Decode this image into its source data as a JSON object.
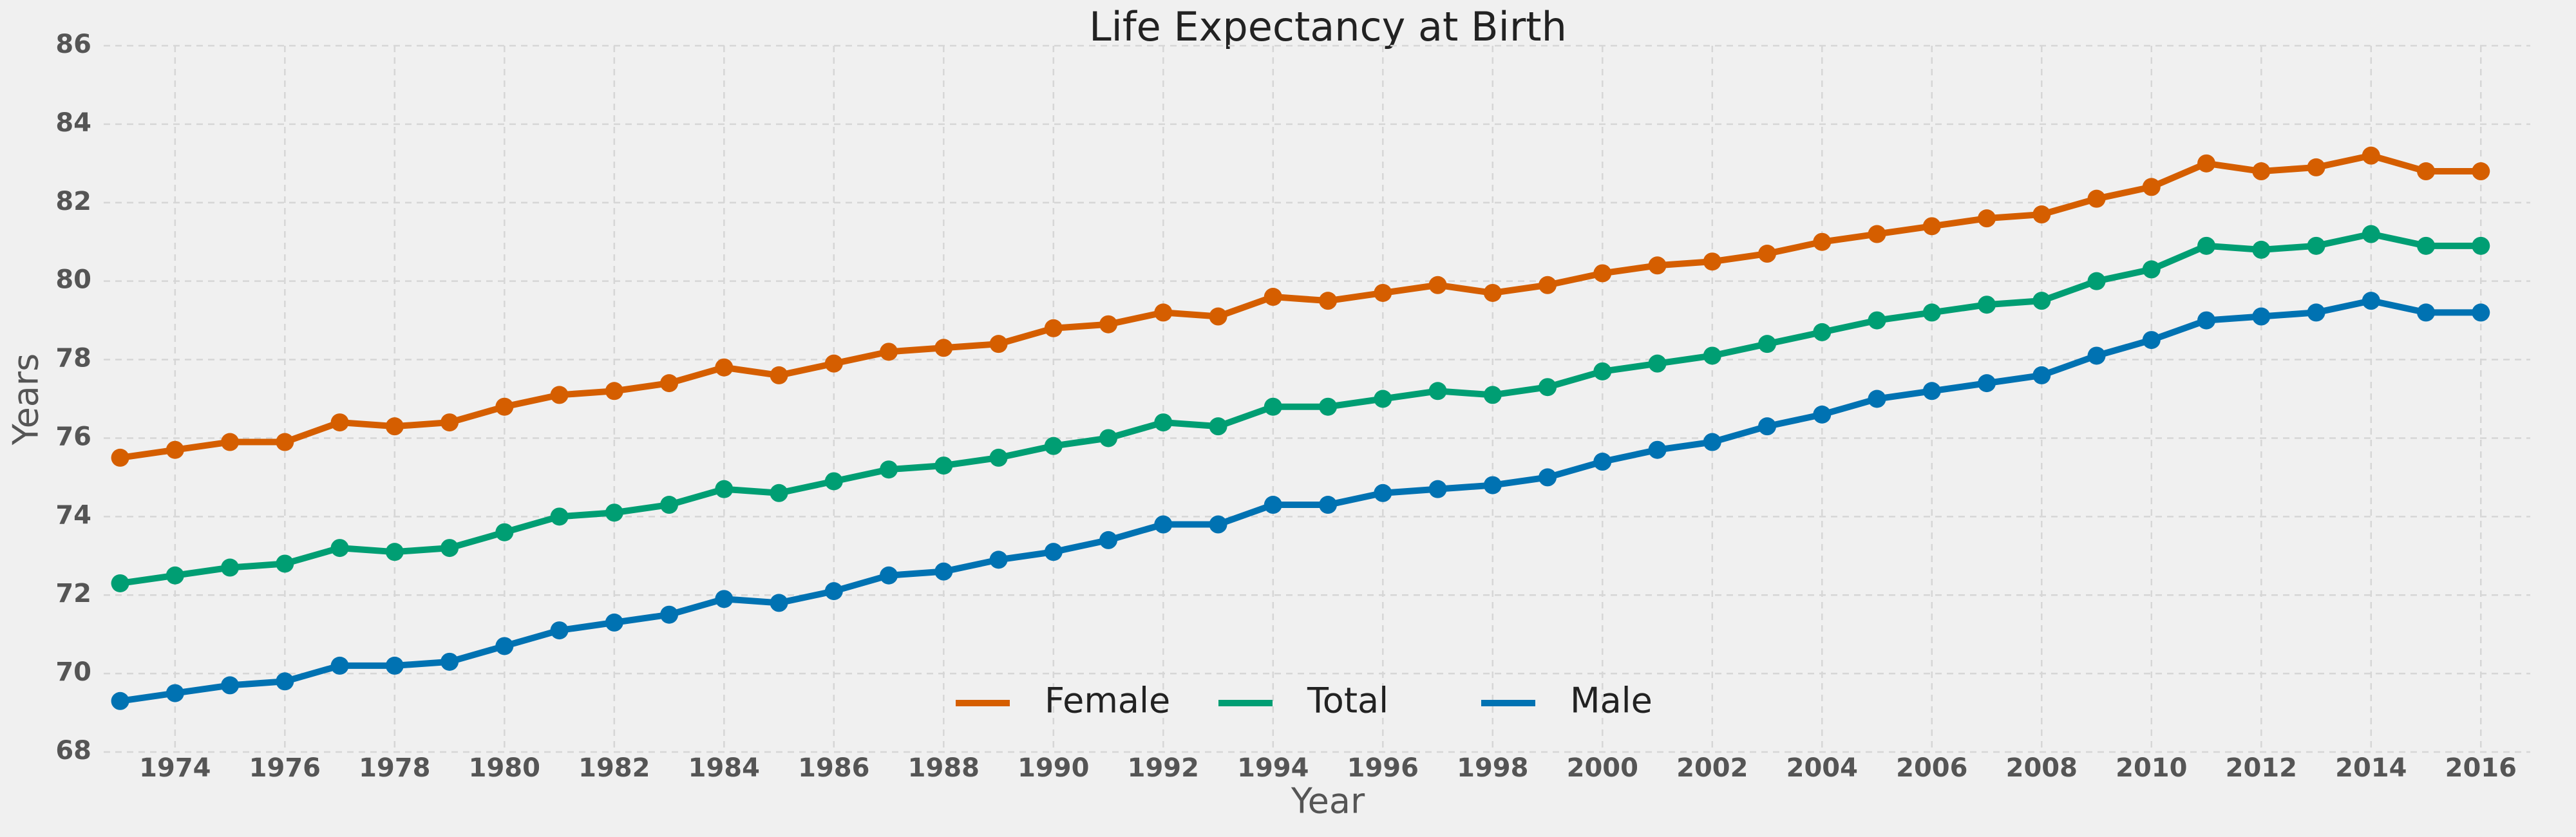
{
  "chart_data": {
    "type": "line",
    "title": "Life Expectancy at Birth",
    "x_label": "Year",
    "y_label": "Years",
    "x": [
      1973,
      1974,
      1975,
      1976,
      1977,
      1978,
      1979,
      1980,
      1981,
      1982,
      1983,
      1984,
      1985,
      1986,
      1987,
      1988,
      1989,
      1990,
      1991,
      1992,
      1993,
      1994,
      1995,
      1996,
      1997,
      1998,
      1999,
      2000,
      2001,
      2002,
      2003,
      2004,
      2005,
      2006,
      2007,
      2008,
      2009,
      2010,
      2011,
      2012,
      2013,
      2014,
      2015,
      2016
    ],
    "series": [
      {
        "name": "Female",
        "color": "#d55e00",
        "values": [
          75.5,
          75.7,
          75.9,
          75.9,
          76.4,
          76.3,
          76.4,
          76.8,
          77.1,
          77.2,
          77.4,
          77.8,
          77.6,
          77.9,
          78.2,
          78.3,
          78.4,
          78.8,
          78.9,
          79.2,
          79.1,
          79.6,
          79.5,
          79.7,
          79.9,
          79.7,
          79.9,
          80.2,
          80.4,
          80.5,
          80.7,
          81.0,
          81.2,
          81.4,
          81.6,
          81.7,
          82.1,
          82.4,
          83.0,
          82.8,
          82.9,
          83.2,
          82.8,
          82.8
        ]
      },
      {
        "name": "Total",
        "color": "#009e73",
        "values": [
          72.3,
          72.5,
          72.7,
          72.8,
          73.2,
          73.1,
          73.2,
          73.6,
          74.0,
          74.1,
          74.3,
          74.7,
          74.6,
          74.9,
          75.2,
          75.3,
          75.5,
          75.8,
          76.0,
          76.4,
          76.3,
          76.8,
          76.8,
          77.0,
          77.2,
          77.1,
          77.3,
          77.7,
          77.9,
          78.1,
          78.4,
          78.7,
          79.0,
          79.2,
          79.4,
          79.5,
          80.0,
          80.3,
          80.9,
          80.8,
          80.9,
          81.2,
          80.9,
          80.9
        ]
      },
      {
        "name": "Male",
        "color": "#0072b2",
        "values": [
          69.3,
          69.5,
          69.7,
          69.8,
          70.2,
          70.2,
          70.3,
          70.7,
          71.1,
          71.3,
          71.5,
          71.9,
          71.8,
          72.1,
          72.5,
          72.6,
          72.9,
          73.1,
          73.4,
          73.8,
          73.8,
          74.3,
          74.3,
          74.6,
          74.7,
          74.8,
          75.0,
          75.4,
          75.7,
          75.9,
          76.3,
          76.6,
          77.0,
          77.2,
          77.4,
          77.6,
          78.1,
          78.5,
          79.0,
          79.1,
          79.2,
          79.5,
          79.2,
          79.2
        ]
      }
    ],
    "xlim": [
      1972.7,
      2016.9
    ],
    "xticks": [
      1974,
      1976,
      1978,
      1980,
      1982,
      1984,
      1986,
      1988,
      1990,
      1992,
      1994,
      1996,
      1998,
      2000,
      2002,
      2004,
      2006,
      2008,
      2010,
      2012,
      2014,
      2016
    ],
    "ylim": [
      68,
      86
    ],
    "yticks": [
      68,
      70,
      72,
      74,
      76,
      78,
      80,
      82,
      84,
      86
    ],
    "grid": true,
    "legend": "lower center"
  }
}
